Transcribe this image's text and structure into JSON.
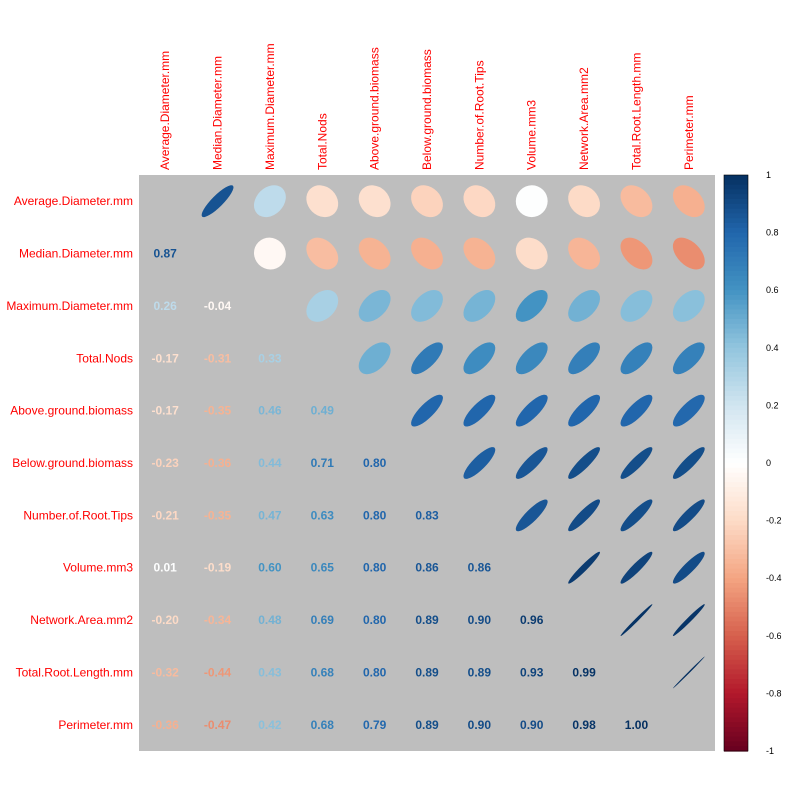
{
  "chart_data": {
    "type": "heatmap",
    "variables": [
      "Average.Diameter.mm",
      "Median.Diameter.mm",
      "Maximum.Diameter.mm",
      "Total.Nods",
      "Above.ground.biomass",
      "Below.ground.biomass",
      "Number.of.Root.Tips",
      "Volume.mm3",
      "Network.Area.mm2",
      "Total.Root.Length.mm",
      "Perimeter.mm"
    ],
    "lower_triangle_labels": [
      [],
      [
        "0.87"
      ],
      [
        "0.26",
        "-0.04"
      ],
      [
        "-0.17",
        "-0.31",
        "0.33"
      ],
      [
        "-0.17",
        "-0.35",
        "0.46",
        "0.49"
      ],
      [
        "-0.23",
        "-0.36",
        "0.44",
        "0.71",
        "0.80"
      ],
      [
        "-0.21",
        "-0.35",
        "0.47",
        "0.63",
        "0.80",
        "0.83"
      ],
      [
        "0.01",
        "-0.19",
        "0.60",
        "0.65",
        "0.80",
        "0.86",
        "0.86"
      ],
      [
        "-0.20",
        "-0.34",
        "0.48",
        "0.69",
        "0.80",
        "0.89",
        "0.90",
        "0.96"
      ],
      [
        "-0.32",
        "-0.44",
        "0.43",
        "0.68",
        "0.80",
        "0.89",
        "0.89",
        "0.93",
        "0.99"
      ],
      [
        "-0.36",
        "-0.47",
        "0.42",
        "0.68",
        "0.79",
        "0.89",
        "0.90",
        "0.90",
        "0.98",
        "1.00"
      ]
    ],
    "upper_triangle_shape": "ellipse",
    "lower_triangle_display": "number",
    "colorbar": {
      "range": [
        -1,
        1
      ],
      "ticks": [
        "1",
        "0.8",
        "0.6",
        "0.4",
        "0.2",
        "0",
        "-0.2",
        "-0.4",
        "-0.6",
        "-0.8",
        "-1"
      ],
      "colors": [
        "#67001F",
        "#B2182B",
        "#D6604D",
        "#F4A582",
        "#FDDBC7",
        "#FFFFFF",
        "#D1E5F0",
        "#92C5DE",
        "#4393C3",
        "#2166AC",
        "#053061"
      ]
    },
    "background_color": "#BEBEBE",
    "label_color": "#FF0000"
  }
}
